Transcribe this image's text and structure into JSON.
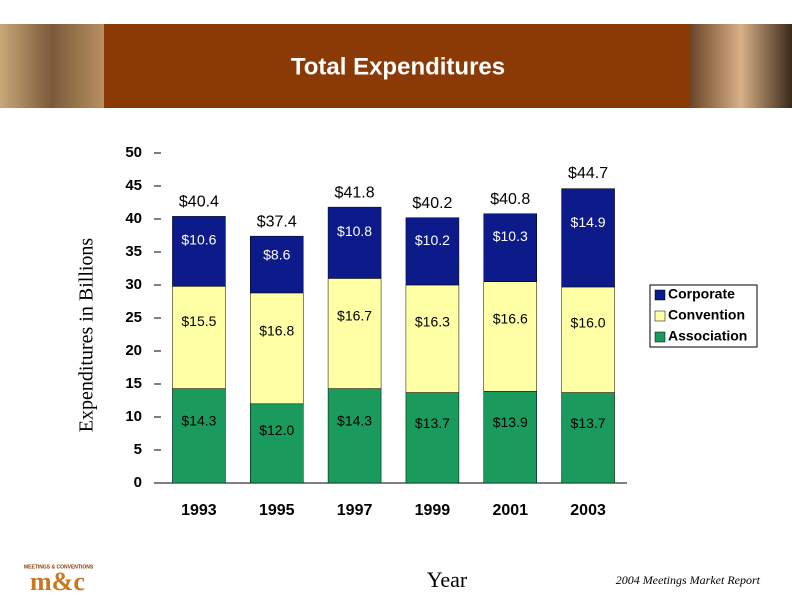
{
  "chart_data": {
    "type": "stacked_bar",
    "title": "Total Expenditures",
    "y_label": "Expenditures in Billions",
    "x_label": "Year",
    "categories": [
      "1993",
      "1995",
      "1997",
      "1999",
      "2001",
      "2003"
    ],
    "series": [
      {
        "name": "Association",
        "color": "#1a9a5c",
        "values": [
          14.3,
          12.0,
          14.3,
          13.7,
          13.9,
          13.7
        ],
        "value_labels": [
          "$14.3",
          "$12.0",
          "$14.3",
          "$13.7",
          "$13.9",
          "$13.7"
        ]
      },
      {
        "name": "Convention",
        "color": "#ffffa6",
        "values": [
          15.5,
          16.8,
          16.7,
          16.3,
          16.6,
          16.0
        ],
        "value_labels": [
          "$15.5",
          "$16.8",
          "$16.7",
          "$16.3",
          "$16.6",
          "$16.0"
        ]
      },
      {
        "name": "Corporate",
        "color": "#0c1a8a",
        "values": [
          10.6,
          8.6,
          10.8,
          10.2,
          10.3,
          14.9
        ],
        "value_labels": [
          "$10.6",
          "$8.6",
          "$10.8",
          "$10.2",
          "$10.3",
          "$14.9"
        ]
      }
    ],
    "totals": {
      "values": [
        40.4,
        37.4,
        41.8,
        40.2,
        40.8,
        44.7
      ],
      "value_labels": [
        "$40.4",
        "$37.4",
        "$41.8",
        "$40.2",
        "$40.8",
        "$44.7"
      ]
    },
    "ylim": [
      0,
      50
    ],
    "yticks": [
      0,
      5,
      10,
      15,
      20,
      25,
      30,
      35,
      40,
      45,
      50
    ],
    "legend": "right"
  },
  "footer": {
    "logo": "m&c",
    "logo_caption": "MEETINGS & CONVENTIONS",
    "source": "2004 Meetings Market Report"
  }
}
